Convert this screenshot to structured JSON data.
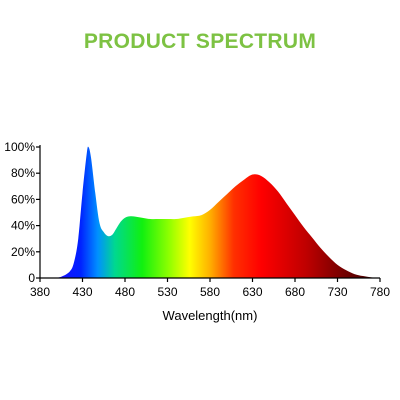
{
  "title": "PRODUCT SPECTRUM",
  "colors": {
    "title": "#7dc243",
    "axis": "#000000"
  },
  "chart_data": {
    "type": "area",
    "title": "PRODUCT SPECTRUM",
    "xlabel": "Wavelength(nm)",
    "ylabel": "",
    "xlim": [
      380,
      780
    ],
    "ylim": [
      0,
      100
    ],
    "x_ticks": [
      380,
      430,
      480,
      530,
      580,
      630,
      680,
      730,
      780
    ],
    "y_ticks": [
      0,
      20,
      40,
      60,
      80,
      100
    ],
    "y_tick_labels": [
      "0",
      "20%",
      "40%",
      "60%",
      "80%",
      "100%"
    ],
    "grid": false,
    "series": [
      {
        "x": [
          395,
          405,
          415,
          420,
          425,
          430,
          435,
          437,
          440,
          445,
          450,
          455,
          460,
          465,
          470,
          475,
          480,
          485,
          490,
          500,
          510,
          520,
          530,
          540,
          550,
          560,
          570,
          580,
          590,
          600,
          610,
          620,
          630,
          640,
          650,
          660,
          670,
          680,
          690,
          700,
          710,
          720,
          730,
          740,
          750,
          760,
          770,
          780
        ],
        "y": [
          0,
          1,
          5,
          12,
          30,
          65,
          95,
          100,
          92,
          65,
          42,
          35,
          32,
          33,
          38,
          43,
          46,
          47,
          47,
          46,
          45,
          45,
          45,
          45,
          46,
          47,
          48,
          52,
          58,
          64,
          70,
          75,
          79,
          78,
          73,
          66,
          57,
          48,
          39,
          31,
          23,
          16,
          10,
          6,
          3,
          1.5,
          0.5,
          0
        ]
      }
    ]
  }
}
